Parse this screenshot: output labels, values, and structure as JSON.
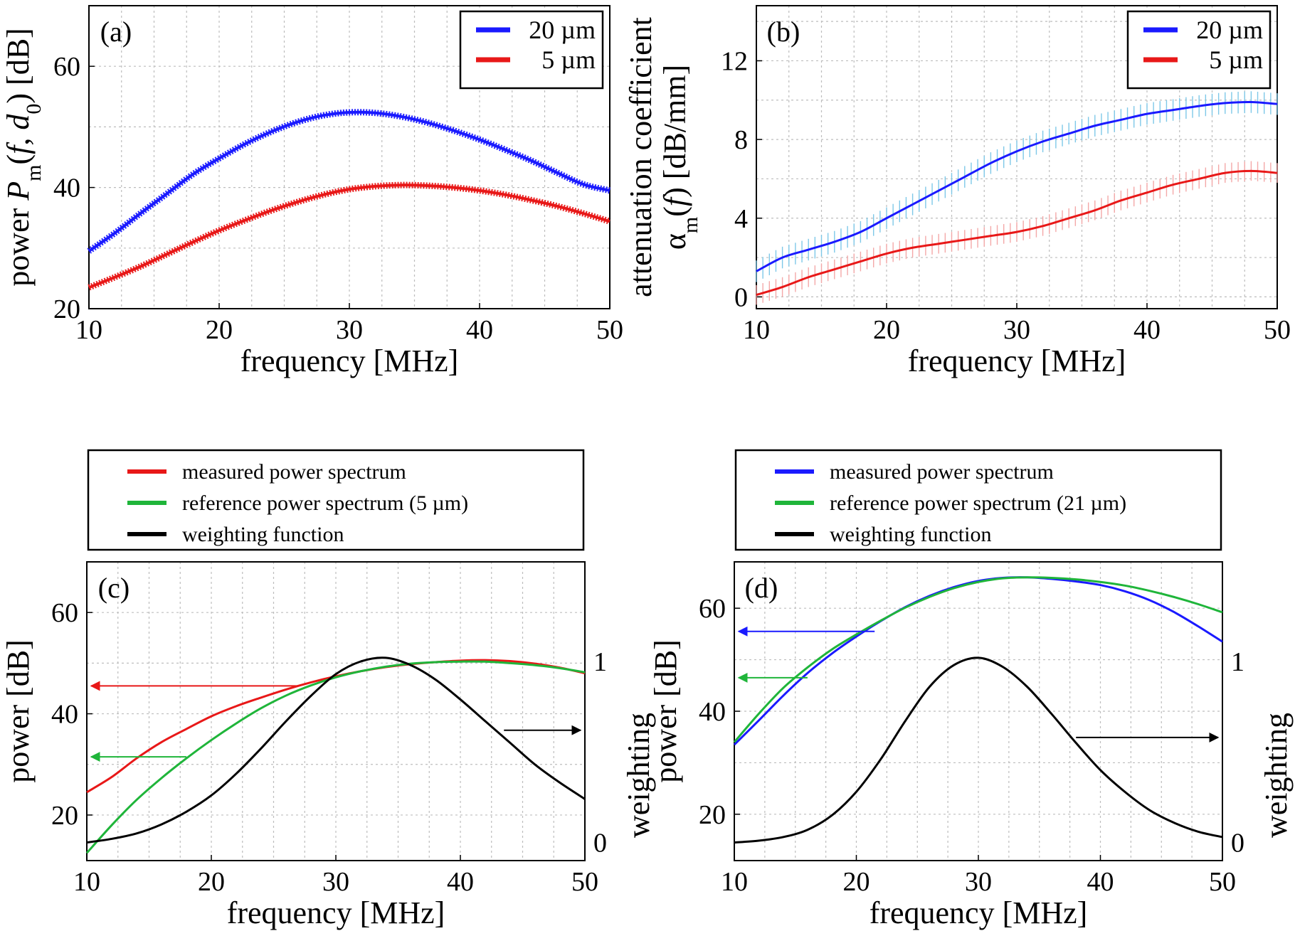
{
  "chart_data": [
    {
      "id": "a",
      "type": "line",
      "panel_label": "(a)",
      "xlabel": "frequency [MHz]",
      "ylabel_parts": [
        "power ",
        "P",
        "m",
        "(",
        "f",
        ", ",
        "d",
        "0",
        ") [dB]"
      ],
      "xlim": [
        10,
        50
      ],
      "ylim": [
        20,
        70
      ],
      "xticks": [
        10,
        20,
        30,
        40,
        50
      ],
      "yticks": [
        20,
        40,
        60
      ],
      "grid": true,
      "legend": "top-right",
      "series": [
        {
          "name": "20 µm",
          "color": "#1a1aff",
          "errorbars": true,
          "x": [
            10,
            12,
            14,
            16,
            18,
            20,
            22,
            24,
            26,
            28,
            30,
            32,
            34,
            36,
            38,
            40,
            42,
            44,
            46,
            48,
            50
          ],
          "y": [
            29.5,
            32.5,
            35.8,
            39,
            42.2,
            44.8,
            47.2,
            49.2,
            50.8,
            51.9,
            52.4,
            52.3,
            51.7,
            50.7,
            49.4,
            47.9,
            46.2,
            44.4,
            42.4,
            40.5,
            39.5
          ]
        },
        {
          "name": "5 µm",
          "color": "#e81818",
          "errorbars": true,
          "x": [
            10,
            12,
            14,
            16,
            18,
            20,
            22,
            24,
            26,
            28,
            30,
            32,
            34,
            36,
            38,
            40,
            42,
            44,
            46,
            48,
            50
          ],
          "y": [
            23.5,
            25.2,
            27,
            29,
            31,
            32.9,
            34.6,
            36.2,
            37.6,
            38.8,
            39.7,
            40.2,
            40.4,
            40.3,
            40,
            39.5,
            38.8,
            37.9,
            36.9,
            35.7,
            34.4
          ]
        }
      ]
    },
    {
      "id": "b",
      "type": "line",
      "panel_label": "(b)",
      "xlabel": "frequency [MHz]",
      "ylabel_line1": "attenuation coefficient",
      "ylabel_line2_parts": [
        "α",
        "m",
        "(",
        "f",
        ") [dB/mm]"
      ],
      "xlim": [
        10,
        50
      ],
      "ylim": [
        -0.6,
        14.8
      ],
      "xticks": [
        10,
        20,
        30,
        40,
        50
      ],
      "yticks": [
        0,
        4,
        8,
        12
      ],
      "grid": true,
      "legend": "top-right",
      "series": [
        {
          "name": "20 µm",
          "color": "#1a1aff",
          "errcolor": "#7ec8e8",
          "err": 0.55,
          "x": [
            10,
            12,
            14,
            16,
            18,
            20,
            22,
            24,
            26,
            28,
            30,
            32,
            34,
            36,
            38,
            40,
            42,
            44,
            46,
            48,
            50
          ],
          "y": [
            1.3,
            2.0,
            2.4,
            2.8,
            3.3,
            4.0,
            4.7,
            5.4,
            6.1,
            6.8,
            7.4,
            7.9,
            8.3,
            8.7,
            9.0,
            9.3,
            9.5,
            9.7,
            9.85,
            9.9,
            9.8
          ]
        },
        {
          "name": "5 µm",
          "color": "#e81818",
          "errcolor": "#f4a8a8",
          "err": 0.5,
          "x": [
            10,
            12,
            14,
            16,
            18,
            20,
            22,
            24,
            26,
            28,
            30,
            32,
            34,
            36,
            38,
            40,
            42,
            44,
            46,
            48,
            50
          ],
          "y": [
            0.1,
            0.5,
            1.0,
            1.4,
            1.8,
            2.2,
            2.5,
            2.7,
            2.9,
            3.1,
            3.3,
            3.6,
            4.0,
            4.4,
            4.9,
            5.3,
            5.7,
            6.0,
            6.3,
            6.4,
            6.3
          ]
        }
      ]
    },
    {
      "id": "c",
      "type": "line",
      "panel_label": "(c)",
      "xlabel": "frequency [MHz]",
      "ylabel": "power [dB]",
      "ylabel_right": "weighting",
      "xlim": [
        10,
        50
      ],
      "ylim": [
        11,
        70
      ],
      "ylim_right": [
        -0.1,
        1.55
      ],
      "xticks": [
        10,
        20,
        30,
        40,
        50
      ],
      "yticks": [
        20,
        40,
        60
      ],
      "yticks_right": [
        0,
        1
      ],
      "grid": true,
      "legend": "above",
      "series": [
        {
          "name": "measured power spectrum",
          "color": "#e81818",
          "axis": "left",
          "x": [
            10,
            12,
            14,
            16,
            18,
            20,
            22,
            24,
            26,
            28,
            30,
            32,
            34,
            36,
            38,
            40,
            42,
            44,
            46,
            48,
            50
          ],
          "y": [
            24.5,
            27.5,
            31.2,
            34.4,
            37,
            39.5,
            41.5,
            43.2,
            44.8,
            46.2,
            47.4,
            48.4,
            49.2,
            49.8,
            50.2,
            50.5,
            50.6,
            50.4,
            49.9,
            49.1,
            48
          ]
        },
        {
          "name": "reference power spectrum (5  µm)",
          "color": "#1fb53a",
          "axis": "left",
          "x": [
            10,
            12,
            14,
            16,
            18,
            20,
            22,
            24,
            26,
            28,
            30,
            32,
            34,
            36,
            38,
            40,
            42,
            44,
            46,
            48,
            50
          ],
          "y": [
            12.5,
            18,
            23,
            27.3,
            31.2,
            34.8,
            38.1,
            41.1,
            43.6,
            45.6,
            47.2,
            48.4,
            49.3,
            49.9,
            50.2,
            50.3,
            50.3,
            50,
            49.6,
            49,
            48.2
          ]
        },
        {
          "name": "weighting  function",
          "color": "#000000",
          "axis": "right",
          "x": [
            10,
            12,
            14,
            16,
            18,
            20,
            22,
            24,
            26,
            28,
            30,
            32,
            34,
            36,
            38,
            40,
            42,
            44,
            46,
            48,
            50
          ],
          "y": [
            0.0,
            0.02,
            0.05,
            0.1,
            0.17,
            0.26,
            0.38,
            0.52,
            0.67,
            0.81,
            0.93,
            1.0,
            1.02,
            0.98,
            0.9,
            0.79,
            0.67,
            0.55,
            0.43,
            0.33,
            0.24
          ]
        }
      ],
      "arrows": [
        {
          "color": "#e81818",
          "from": [
            27,
            45.5
          ],
          "to": [
            10,
            45.5
          ],
          "axis": "left"
        },
        {
          "color": "#1fb53a",
          "from": [
            18,
            31.5
          ],
          "to": [
            10,
            31.5
          ],
          "axis": "left"
        },
        {
          "color": "#000000",
          "from": [
            43.5,
            0.62
          ],
          "to": [
            50,
            0.62
          ],
          "axis": "right"
        }
      ]
    },
    {
      "id": "d",
      "type": "line",
      "panel_label": "(d)",
      "xlabel": "frequency [MHz]",
      "ylabel": "power [dB]",
      "ylabel_right": "weighting",
      "xlim": [
        10,
        50
      ],
      "ylim": [
        11,
        69
      ],
      "ylim_right": [
        -0.1,
        1.55
      ],
      "xticks": [
        10,
        20,
        30,
        40,
        50
      ],
      "yticks": [
        20,
        40,
        60
      ],
      "yticks_right": [
        0,
        1
      ],
      "grid": true,
      "legend": "above",
      "series": [
        {
          "name": "measured power spectrum",
          "color": "#1a1aff",
          "axis": "left",
          "x": [
            10,
            12,
            14,
            16,
            18,
            20,
            22,
            24,
            26,
            28,
            30,
            32,
            34,
            36,
            38,
            40,
            42,
            44,
            46,
            48,
            50
          ],
          "y": [
            33.5,
            38.2,
            43,
            47.4,
            51.2,
            54.5,
            57.5,
            60.2,
            62.4,
            64.1,
            65.3,
            65.9,
            66.0,
            65.7,
            65.2,
            64.5,
            63.3,
            61.6,
            59.3,
            56.5,
            53.5
          ]
        },
        {
          "name": "reference power spectrum (21  µm)",
          "color": "#1fb53a",
          "axis": "left",
          "x": [
            10,
            12,
            14,
            16,
            18,
            20,
            22,
            24,
            26,
            28,
            30,
            32,
            34,
            36,
            38,
            40,
            42,
            44,
            46,
            48,
            50
          ],
          "y": [
            34,
            39.5,
            44.5,
            48.5,
            52,
            54.9,
            57.6,
            60.1,
            62.2,
            63.9,
            65.1,
            65.8,
            66.0,
            65.9,
            65.6,
            65.1,
            64.4,
            63.4,
            62.2,
            60.8,
            59.2
          ]
        },
        {
          "name": "weighting  function",
          "color": "#000000",
          "axis": "right",
          "x": [
            10,
            12,
            14,
            16,
            18,
            20,
            22,
            24,
            26,
            28,
            30,
            32,
            34,
            36,
            38,
            40,
            42,
            44,
            46,
            48,
            50
          ],
          "y": [
            0.0,
            0.01,
            0.03,
            0.07,
            0.15,
            0.28,
            0.46,
            0.67,
            0.86,
            0.98,
            1.02,
            0.97,
            0.86,
            0.71,
            0.55,
            0.4,
            0.28,
            0.18,
            0.11,
            0.06,
            0.03
          ]
        }
      ],
      "arrows": [
        {
          "color": "#1a1aff",
          "from": [
            21.5,
            55.5
          ],
          "to": [
            10,
            55.5
          ],
          "axis": "left"
        },
        {
          "color": "#1fb53a",
          "from": [
            16,
            46.5
          ],
          "to": [
            10,
            46.5
          ],
          "axis": "left"
        },
        {
          "color": "#000000",
          "from": [
            38,
            0.58
          ],
          "to": [
            50,
            0.58
          ],
          "axis": "right"
        }
      ]
    }
  ]
}
